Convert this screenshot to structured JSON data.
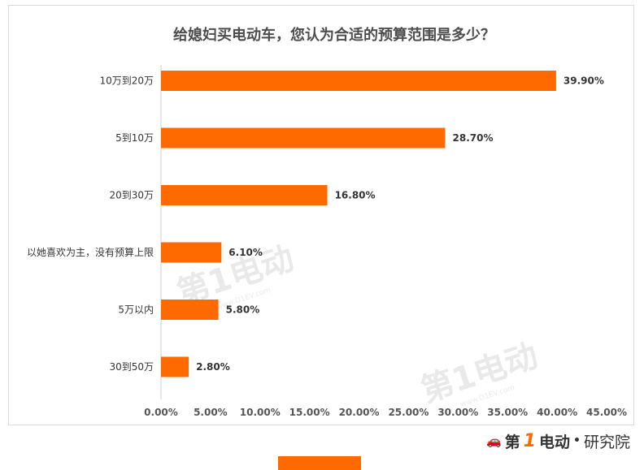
{
  "chart_data": {
    "type": "bar",
    "orientation": "horizontal",
    "title": "给媳妇买电动车，您认为合适的预算范围是多少？",
    "categories": [
      "10万到20万",
      "5到10万",
      "20到30万",
      "以她喜欢为主，没有预算上限",
      "5万以内",
      "30到50万"
    ],
    "values": [
      39.9,
      28.7,
      16.8,
      6.1,
      5.8,
      2.8
    ],
    "value_labels": [
      "39.90%",
      "28.70%",
      "16.80%",
      "6.10%",
      "5.80%",
      "2.80%"
    ],
    "x_ticks": [
      "0.00%",
      "5.00%",
      "10.00%",
      "15.00%",
      "20.00%",
      "25.00%",
      "30.00%",
      "35.00%",
      "40.00%",
      "45.00%"
    ],
    "xlim": [
      0,
      45
    ],
    "grid": false,
    "bar_color": "#ff6a00",
    "xlabel": "",
    "ylabel": ""
  },
  "watermark": {
    "text": "第1电动",
    "url": "www.D1EV.com"
  },
  "brand": {
    "car_glyph": "🚗",
    "one": "1",
    "name_pre": "第",
    "name_post": "电动",
    "separator": "•",
    "institute": "研究院"
  }
}
